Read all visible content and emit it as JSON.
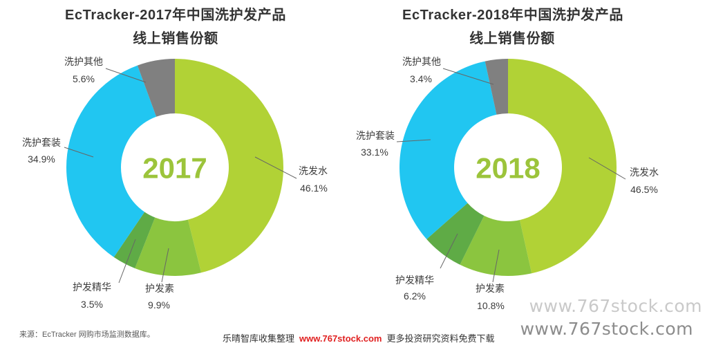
{
  "chart_data": [
    {
      "type": "pie",
      "donut": true,
      "title": "EcTracker-2017年中国洗护发产品",
      "subtitle": "线上销售份额",
      "center_label": "2017",
      "categories": [
        "洗发水",
        "护发素",
        "护发精华",
        "洗护套装",
        "洗护其他"
      ],
      "values": [
        46.1,
        9.9,
        3.5,
        34.9,
        5.6
      ],
      "value_labels": [
        "46.1%",
        "9.9%",
        "3.5%",
        "34.9%",
        "5.6%"
      ],
      "colors": [
        "#b1d236",
        "#8bc53f",
        "#5fab46",
        "#21c6f1",
        "#808080"
      ]
    },
    {
      "type": "pie",
      "donut": true,
      "title": "EcTracker-2018年中国洗护发产品",
      "subtitle": "线上销售份额",
      "center_label": "2018",
      "categories": [
        "洗发水",
        "护发素",
        "护发精华",
        "洗护套装",
        "洗护其他"
      ],
      "values": [
        46.5,
        10.8,
        6.2,
        33.1,
        3.4
      ],
      "value_labels": [
        "46.5%",
        "10.8%",
        "6.2%",
        "33.1%",
        "3.4%"
      ],
      "colors": [
        "#b1d236",
        "#8bc53f",
        "#5fab46",
        "#21c6f1",
        "#808080"
      ]
    }
  ],
  "source_note": "来源：EcTracker 网购市场监测数据库。",
  "footer": {
    "prefix": "乐晴智库收集整理",
    "site": "www.767stock.com",
    "suffix": "更多投资研究资料免费下载"
  },
  "watermark": [
    "www.767stock.com",
    "www.767stock.com"
  ],
  "colors": {
    "center_label": "#9cc43b",
    "footer_site": "#e02020",
    "watermark_light": "#c9c9c9",
    "watermark_dark": "#8c8c8c"
  }
}
